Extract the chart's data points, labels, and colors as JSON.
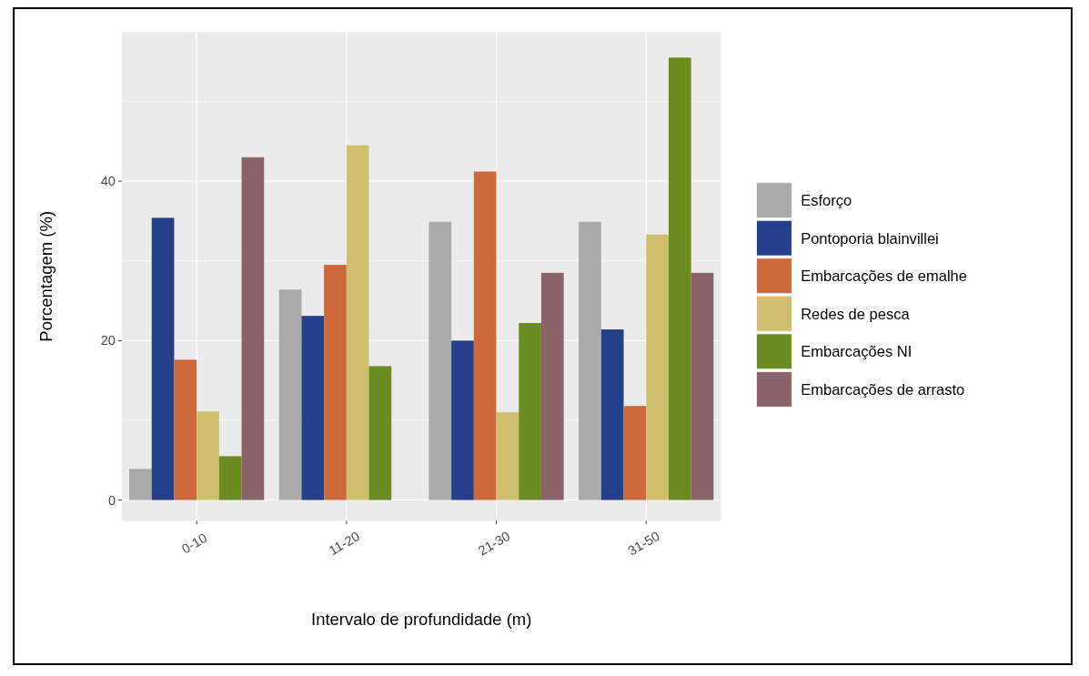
{
  "chart_data": {
    "type": "bar",
    "xlabel": "Intervalo de profundidade (m)",
    "ylabel": "Porcentagem (%)",
    "categories": [
      "0-10",
      "11-20",
      "21-30",
      "31-50"
    ],
    "series": [
      {
        "name": "Esforço",
        "color": "#aaaaaa",
        "values": [
          3.9,
          26.4,
          34.9,
          34.9
        ]
      },
      {
        "name": "Pontoporia blainvillei",
        "color": "#253f8a",
        "values": [
          35.4,
          23.1,
          20.0,
          21.4
        ]
      },
      {
        "name": "Embarcações de emalhe",
        "color": "#cc683a",
        "values": [
          17.6,
          29.5,
          41.2,
          11.8
        ]
      },
      {
        "name": "Redes de pesca",
        "color": "#cfbe6e",
        "values": [
          11.1,
          44.5,
          11.0,
          33.3
        ]
      },
      {
        "name": "Embarcações NI",
        "color": "#6a8c23",
        "values": [
          5.5,
          16.8,
          22.2,
          55.5
        ]
      },
      {
        "name": "Embarcações de arrasto",
        "color": "#8b636b",
        "values": [
          43.0,
          null,
          28.5,
          28.5
        ]
      }
    ],
    "ylim": [
      -2.6,
      58.7
    ],
    "yticks": [
      0,
      20,
      40
    ],
    "grid": true,
    "legend": "right"
  }
}
